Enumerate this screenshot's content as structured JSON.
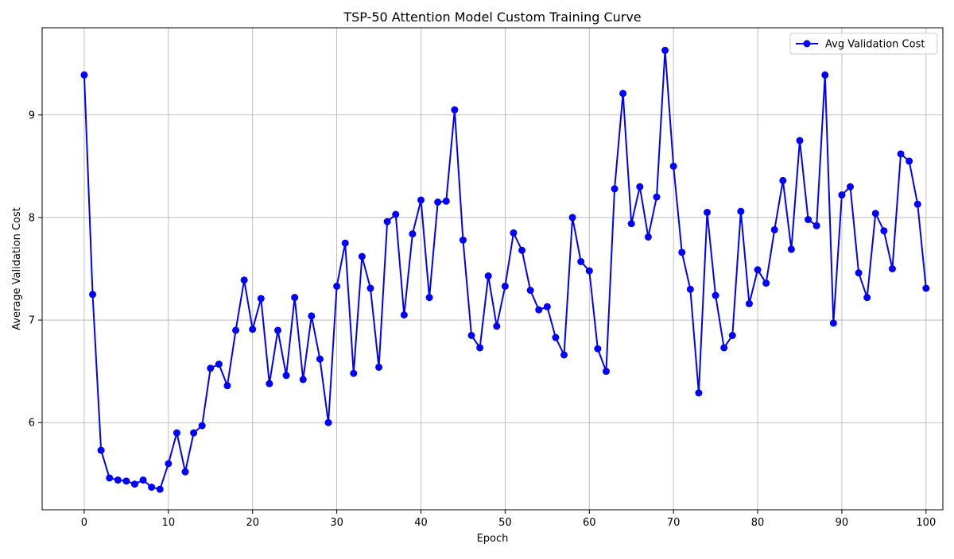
{
  "chart_data": {
    "type": "line",
    "title": "TSP-50 Attention Model Custom Training Curve",
    "xlabel": "Epoch",
    "ylabel": "Average Validation Cost",
    "xlim": [
      -5,
      102
    ],
    "ylim": [
      5.15,
      9.85
    ],
    "xticks": [
      0,
      10,
      20,
      30,
      40,
      50,
      60,
      70,
      80,
      90,
      100
    ],
    "yticks": [
      6,
      7,
      8,
      9
    ],
    "grid": true,
    "legend_position": "top-right",
    "series": [
      {
        "name": "Avg Validation Cost",
        "color": "#0000ff",
        "marker": "circle",
        "x": [
          0,
          1,
          2,
          3,
          4,
          5,
          6,
          7,
          8,
          9,
          10,
          11,
          12,
          13,
          14,
          15,
          16,
          17,
          18,
          19,
          20,
          21,
          22,
          23,
          24,
          25,
          26,
          27,
          28,
          29,
          30,
          31,
          32,
          33,
          34,
          35,
          36,
          37,
          38,
          39,
          40,
          41,
          42,
          43,
          44,
          45,
          46,
          47,
          48,
          49,
          50,
          51,
          52,
          53,
          54,
          55,
          56,
          57,
          58,
          59,
          60,
          61,
          62,
          63,
          64,
          65,
          66,
          67,
          68,
          69,
          70,
          71,
          72,
          73,
          74,
          75,
          76,
          77,
          78,
          79,
          80,
          81,
          82,
          83,
          84,
          85,
          86,
          87,
          88,
          89,
          90,
          91,
          92,
          93,
          94,
          95,
          96,
          97,
          98,
          99,
          100
        ],
        "y": [
          9.39,
          7.25,
          5.73,
          5.46,
          5.44,
          5.43,
          5.4,
          5.44,
          5.37,
          5.35,
          5.6,
          5.9,
          5.52,
          5.9,
          5.97,
          6.53,
          6.57,
          6.36,
          6.9,
          7.39,
          6.91,
          7.21,
          6.38,
          6.9,
          6.46,
          7.22,
          6.42,
          7.04,
          6.62,
          6.0,
          7.33,
          7.75,
          6.48,
          7.62,
          7.31,
          6.54,
          7.96,
          8.03,
          7.05,
          7.84,
          8.17,
          7.22,
          8.15,
          8.16,
          9.05,
          7.78,
          6.85,
          6.73,
          7.43,
          6.94,
          7.33,
          7.85,
          7.68,
          7.29,
          7.1,
          7.13,
          6.83,
          6.66,
          8.0,
          7.57,
          7.48,
          6.72,
          6.5,
          8.28,
          9.21,
          7.94,
          8.3,
          7.81,
          8.2,
          9.63,
          8.5,
          7.66,
          7.3,
          6.29,
          8.05,
          7.24,
          6.73,
          6.85,
          8.06,
          7.16,
          7.49,
          7.36,
          7.88,
          8.36,
          7.69,
          8.75,
          7.98,
          7.92,
          9.39,
          6.97,
          8.22,
          8.3,
          7.46,
          7.22,
          8.04,
          7.87,
          7.5,
          8.62,
          8.55,
          8.13,
          7.31
        ]
      }
    ]
  }
}
